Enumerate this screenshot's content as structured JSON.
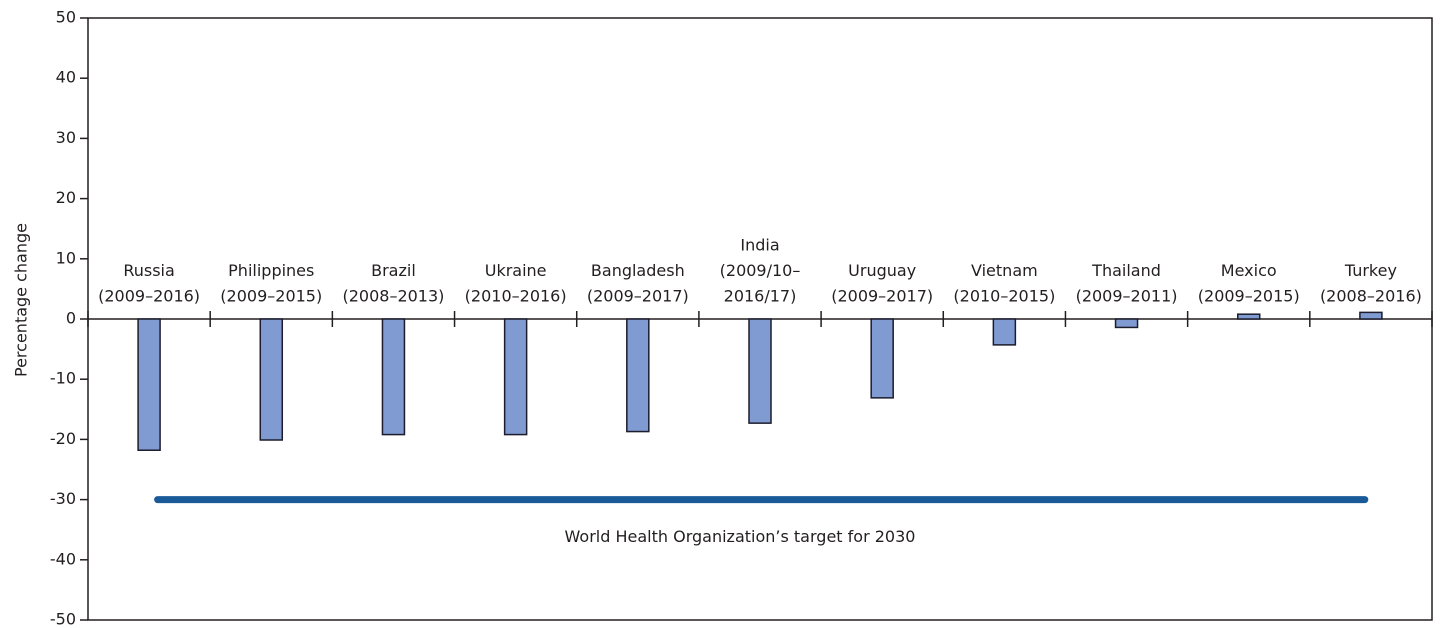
{
  "chart_data": {
    "type": "bar",
    "y_label": "Percentage change",
    "categories": [
      [
        "Russia",
        "(2009–2016)"
      ],
      [
        "Philippines",
        "(2009–2015)"
      ],
      [
        "Brazil",
        "(2008–2013)"
      ],
      [
        "Ukraine",
        "(2010–2016)"
      ],
      [
        "Bangladesh",
        "(2009–2017)"
      ],
      [
        "India",
        "(2009/10–",
        "2016/17)"
      ],
      [
        "Uruguay",
        "(2009–2017)"
      ],
      [
        "Vietnam",
        "(2010–2015)"
      ],
      [
        "Thailand",
        "(2009–2011)"
      ],
      [
        "Mexico",
        "(2009–2015)"
      ],
      [
        "Turkey",
        "(2008–2016)"
      ]
    ],
    "values": [
      -21.8,
      -20.1,
      -19.2,
      -19.2,
      -18.7,
      -17.3,
      -13.1,
      -4.3,
      -1.4,
      0.8,
      1.1
    ],
    "color": "#7f9bd1",
    "target": {
      "value": -30,
      "label": "World Health Organization’s target for 2030",
      "color": "#1a5a99"
    },
    "ylim": [
      -50,
      50
    ],
    "yticks": [
      -50,
      -40,
      -30,
      -20,
      -10,
      0,
      10,
      20,
      30,
      40,
      50
    ]
  }
}
